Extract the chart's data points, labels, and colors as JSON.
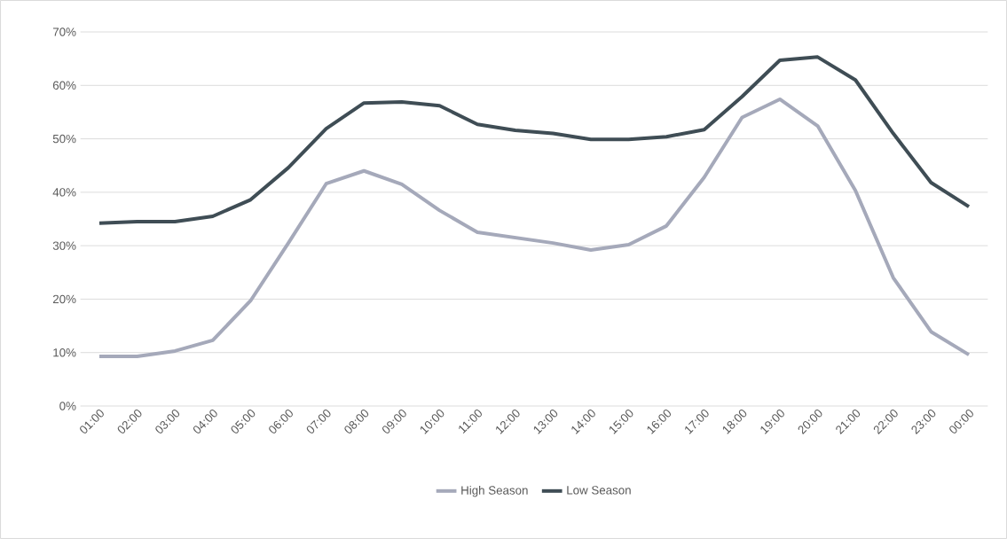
{
  "chart_data": {
    "type": "line",
    "categories": [
      "01:00",
      "02:00",
      "03:00",
      "04:00",
      "05:00",
      "06:00",
      "07:00",
      "08:00",
      "09:00",
      "10:00",
      "11:00",
      "12:00",
      "13:00",
      "14:00",
      "15:00",
      "16:00",
      "17:00",
      "18:00",
      "19:00",
      "20:00",
      "21:00",
      "22:00",
      "23:00",
      "00:00"
    ],
    "series": [
      {
        "name": "High Season",
        "color": "#a5a9ba",
        "values": [
          9.3,
          9.3,
          10.3,
          12.3,
          19.7,
          30.5,
          41.6,
          44,
          41.5,
          36.6,
          32.5,
          31.5,
          30.5,
          29.2,
          30.2,
          33.7,
          42.8,
          54,
          57.4,
          52.4,
          40.3,
          24,
          13.9,
          9.6
        ]
      },
      {
        "name": "Low Season",
        "color": "#3f4d55",
        "values": [
          34.2,
          34.5,
          34.5,
          35.5,
          38.6,
          44.6,
          51.9,
          56.7,
          56.9,
          56.2,
          52.7,
          51.6,
          51,
          49.9,
          49.9,
          50.4,
          51.7,
          57.9,
          64.7,
          65.3,
          61,
          51,
          41.8,
          37.3
        ]
      }
    ],
    "ylim": [
      0,
      70
    ],
    "yticks": [
      {
        "value": 0,
        "label": "0%"
      },
      {
        "value": 10,
        "label": "10%"
      },
      {
        "value": 20,
        "label": "20%"
      },
      {
        "value": 30,
        "label": "30%"
      },
      {
        "value": 40,
        "label": "40%"
      },
      {
        "value": 50,
        "label": "50%"
      },
      {
        "value": 60,
        "label": "60%"
      },
      {
        "value": 70,
        "label": "70%"
      }
    ],
    "grid": "y",
    "legend": "bottom",
    "marker": "none",
    "line_style": "solid"
  }
}
